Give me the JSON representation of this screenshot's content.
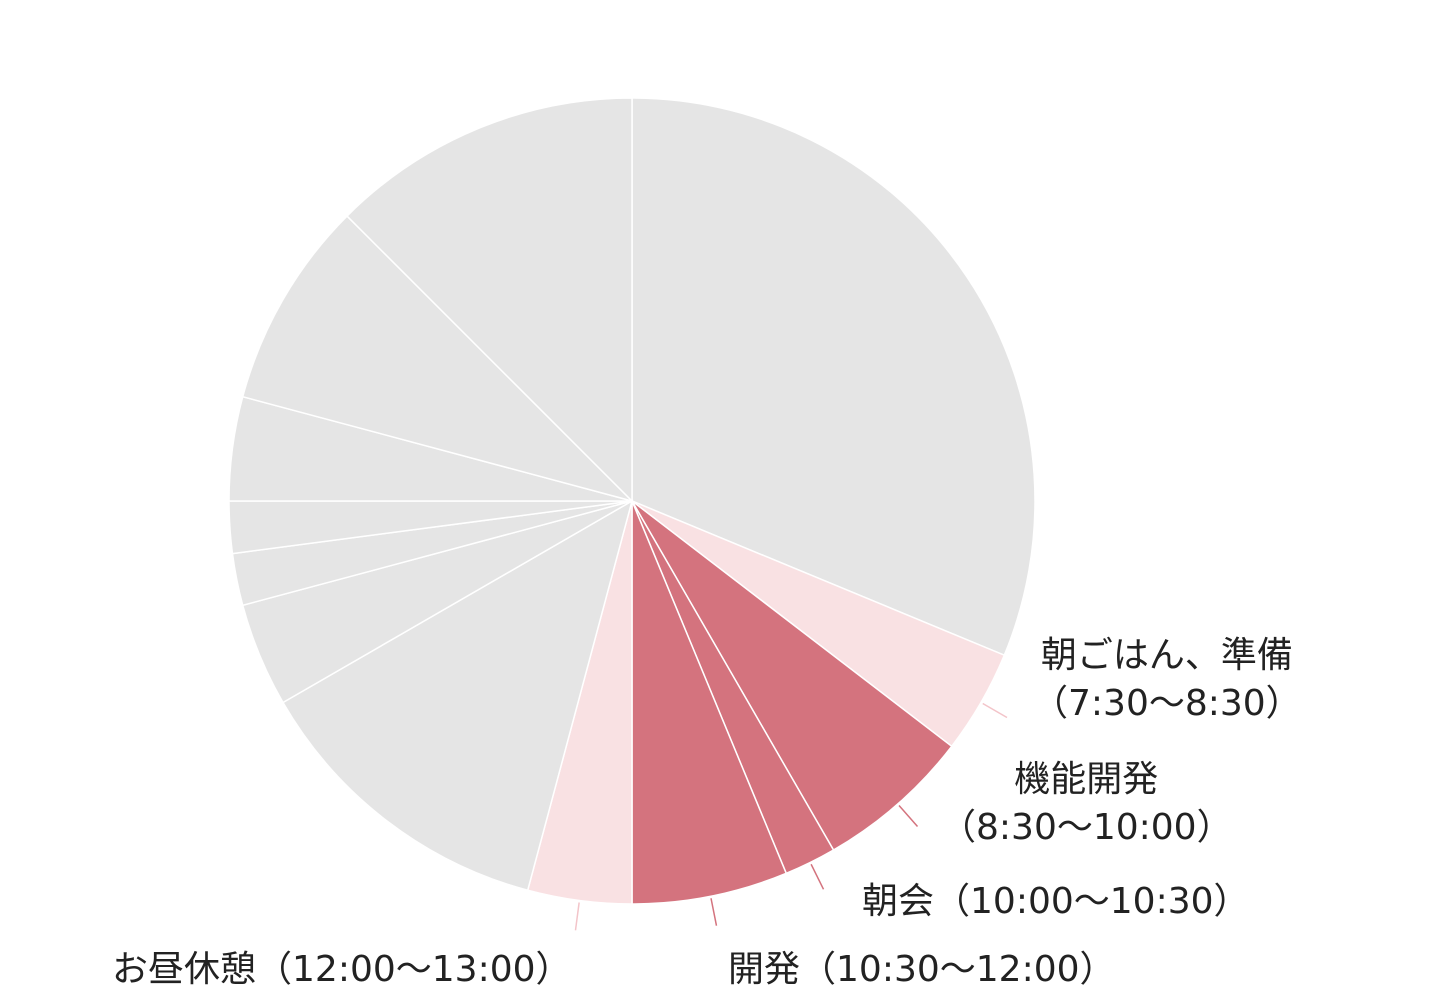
{
  "chart_data": {
    "type": "pie",
    "unit": "hours",
    "start_angle": "top, clockwise",
    "colors": {
      "sleep_other": "#e5e5e5",
      "light": "#f9e1e3",
      "dark": "#d4737e",
      "border": "#ffffff"
    },
    "slices": [
      {
        "start": "0:00",
        "end": "7:30",
        "value": 7.5,
        "color": "#e5e5e5",
        "label": "",
        "time": ""
      },
      {
        "start": "7:30",
        "end": "8:30",
        "value": 1.0,
        "color": "#f9e1e3",
        "label": "朝ごはん、準備",
        "time": "（7:30〜8:30）"
      },
      {
        "start": "8:30",
        "end": "10:00",
        "value": 1.5,
        "color": "#d4737e",
        "label": "機能開発",
        "time": "（8:30〜10:00）"
      },
      {
        "start": "10:00",
        "end": "10:30",
        "value": 0.5,
        "color": "#d4737e",
        "label": "朝会",
        "time": "（10:00〜10:30）"
      },
      {
        "start": "10:30",
        "end": "12:00",
        "value": 1.5,
        "color": "#d4737e",
        "label": "開発",
        "time": "（10:30〜12:00）"
      },
      {
        "start": "12:00",
        "end": "13:00",
        "value": 1.0,
        "color": "#f9e1e3",
        "label": "お昼休憩",
        "time": "（12:00〜13:00）"
      },
      {
        "start": "13:00",
        "end": "16:00",
        "value": 3.0,
        "color": "#e5e5e5",
        "label": "",
        "time": ""
      },
      {
        "start": "16:00",
        "end": "17:00",
        "value": 1.0,
        "color": "#e5e5e5",
        "label": "",
        "time": ""
      },
      {
        "start": "17:00",
        "end": "17:30",
        "value": 0.5,
        "color": "#e5e5e5",
        "label": "",
        "time": ""
      },
      {
        "start": "17:30",
        "end": "18:00",
        "value": 0.5,
        "color": "#e5e5e5",
        "label": "",
        "time": ""
      },
      {
        "start": "18:00",
        "end": "19:00",
        "value": 1.0,
        "color": "#e5e5e5",
        "label": "",
        "time": ""
      },
      {
        "start": "19:00",
        "end": "21:00",
        "value": 2.0,
        "color": "#e5e5e5",
        "label": "",
        "time": ""
      },
      {
        "start": "21:00",
        "end": "24:00",
        "value": 3.0,
        "color": "#e5e5e5",
        "label": "",
        "time": ""
      }
    ]
  }
}
